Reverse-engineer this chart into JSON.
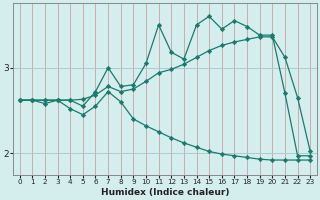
{
  "xlabel": "Humidex (Indice chaleur)",
  "background_color": "#d4eeee",
  "grid_color": "#aacccc",
  "line_color": "#1a7a6e",
  "x_ticks": [
    0,
    1,
    2,
    3,
    4,
    5,
    6,
    7,
    8,
    9,
    10,
    11,
    12,
    13,
    14,
    15,
    16,
    17,
    18,
    19,
    20,
    21,
    22,
    23
  ],
  "y_ticks": [
    2,
    3
  ],
  "ylim": [
    1.75,
    3.75
  ],
  "xlim": [
    -0.5,
    23.5
  ],
  "line1_x": [
    0,
    1,
    2,
    3,
    4,
    5,
    6,
    7,
    8,
    9,
    10,
    11,
    12,
    13,
    14,
    15,
    16,
    17,
    18,
    19,
    20,
    21,
    22,
    23
  ],
  "line1_y": [
    2.62,
    2.62,
    2.58,
    2.62,
    2.62,
    2.55,
    2.72,
    3.0,
    2.78,
    2.8,
    3.05,
    3.5,
    3.18,
    3.1,
    3.5,
    3.6,
    3.45,
    3.55,
    3.48,
    3.38,
    3.38,
    2.7,
    1.97,
    1.97
  ],
  "line2_x": [
    0,
    1,
    2,
    3,
    4,
    5,
    6,
    7,
    8,
    9,
    10,
    11,
    12,
    13,
    14,
    15,
    16,
    17,
    18,
    19,
    20,
    21,
    22,
    23
  ],
  "line2_y": [
    2.62,
    2.62,
    2.62,
    2.62,
    2.62,
    2.63,
    2.68,
    2.78,
    2.72,
    2.75,
    2.84,
    2.94,
    2.98,
    3.04,
    3.12,
    3.2,
    3.26,
    3.3,
    3.33,
    3.36,
    3.36,
    3.12,
    2.65,
    2.02
  ],
  "line3_x": [
    0,
    1,
    2,
    3,
    4,
    5,
    6,
    7,
    8,
    9,
    10,
    11,
    12,
    13,
    14,
    15,
    16,
    17,
    18,
    19,
    20,
    21,
    22,
    23
  ],
  "line3_y": [
    2.62,
    2.62,
    2.62,
    2.62,
    2.52,
    2.45,
    2.55,
    2.72,
    2.6,
    2.4,
    2.32,
    2.25,
    2.18,
    2.12,
    2.07,
    2.02,
    1.99,
    1.97,
    1.95,
    1.93,
    1.92,
    1.92,
    1.92,
    1.92
  ]
}
